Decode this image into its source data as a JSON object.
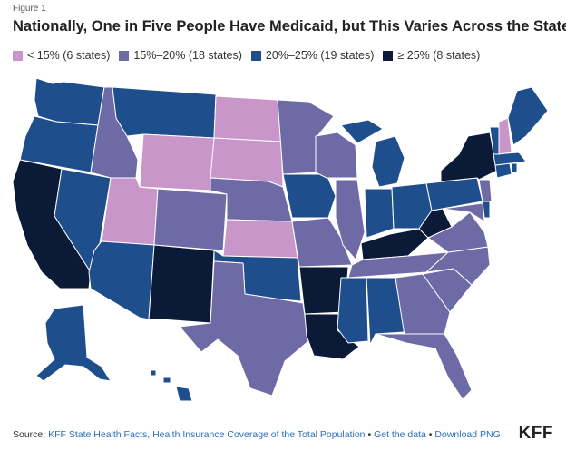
{
  "figure_label": "Figure 1",
  "title": "Nationally, One in Five People Have Medicaid, but This Varies Across the States.",
  "legend": [
    {
      "label": "< 15% (6 states)",
      "color": "#c996c9"
    },
    {
      "label": "15%–20% (18 states)",
      "color": "#6e6aa6"
    },
    {
      "label": "20%–25% (19 states)",
      "color": "#1f4e8c"
    },
    {
      "label": "≥ 25% (8 states)",
      "color": "#0b1a36"
    }
  ],
  "footer": {
    "source_prefix": "Source:",
    "source_link": "KFF State Health Facts, Health Insurance Coverage of the Total Population",
    "sep1": "•",
    "get_data": "Get the data",
    "sep2": "•",
    "download": "Download PNG"
  },
  "logo": "KFF"
}
